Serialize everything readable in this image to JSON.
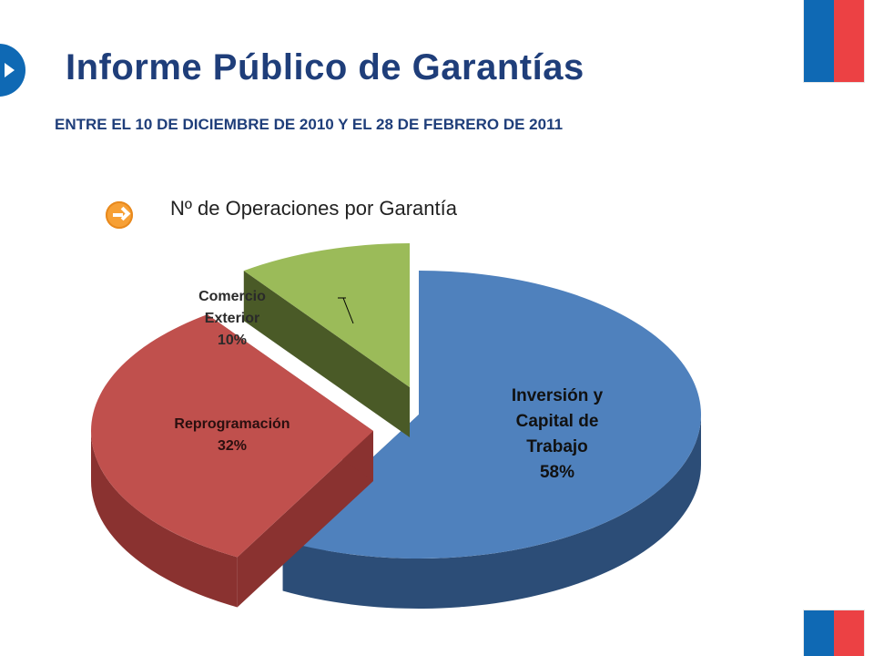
{
  "header": {
    "title": "Informe Público de Garantías",
    "subtitle": "ENTRE EL 10 DE DICIEMBRE DE 2010 Y EL 28 DE FEBRERO DE 2011"
  },
  "section": {
    "caption": "Nº de Operaciones por Garantía"
  },
  "colors": {
    "title": "#1f3e7a",
    "flag_blue": "#0f69b4",
    "flag_red": "#ec4144",
    "accent_orange": "#f7a035"
  },
  "icons": {
    "header": "play-icon",
    "section": "arrow-right-icon"
  },
  "chart_data": {
    "type": "pie",
    "slices": [
      {
        "name": "Inversión y Capital de Trabajo",
        "value": 58,
        "label_lines": [
          "Inversión y",
          "Capital de",
          "Trabajo",
          "58%"
        ],
        "color": "#4f81bd",
        "side_color": "#2c4d77"
      },
      {
        "name": "Reprogramación",
        "value": 32,
        "label_lines": [
          "Reprogramación",
          "32%"
        ],
        "color": "#c0504d",
        "side_color": "#8a3230"
      },
      {
        "name": "Comercio Exterior",
        "value": 10,
        "label_lines": [
          "Comercio",
          "Exterior",
          "10%"
        ],
        "color": "#9bbb59",
        "side_color": "#4a5a27"
      }
    ]
  }
}
